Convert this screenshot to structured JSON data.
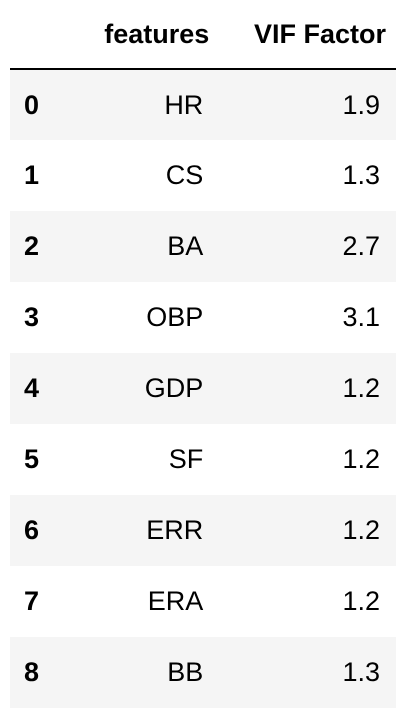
{
  "table": {
    "columns": [
      "",
      "features",
      "VIF Factor"
    ],
    "rows": [
      {
        "index": "0",
        "feature": "HR",
        "vif": "1.9"
      },
      {
        "index": "1",
        "feature": "CS",
        "vif": "1.3"
      },
      {
        "index": "2",
        "feature": "BA",
        "vif": "2.7"
      },
      {
        "index": "3",
        "feature": "OBP",
        "vif": "3.1"
      },
      {
        "index": "4",
        "feature": "GDP",
        "vif": "1.2"
      },
      {
        "index": "5",
        "feature": "SF",
        "vif": "1.2"
      },
      {
        "index": "6",
        "feature": "ERR",
        "vif": "1.2"
      },
      {
        "index": "7",
        "feature": "ERA",
        "vif": "1.2"
      },
      {
        "index": "8",
        "feature": "BB",
        "vif": "1.3"
      }
    ]
  },
  "colors": {
    "stripe": "#f5f5f5",
    "background": "#ffffff",
    "text": "#000000"
  }
}
